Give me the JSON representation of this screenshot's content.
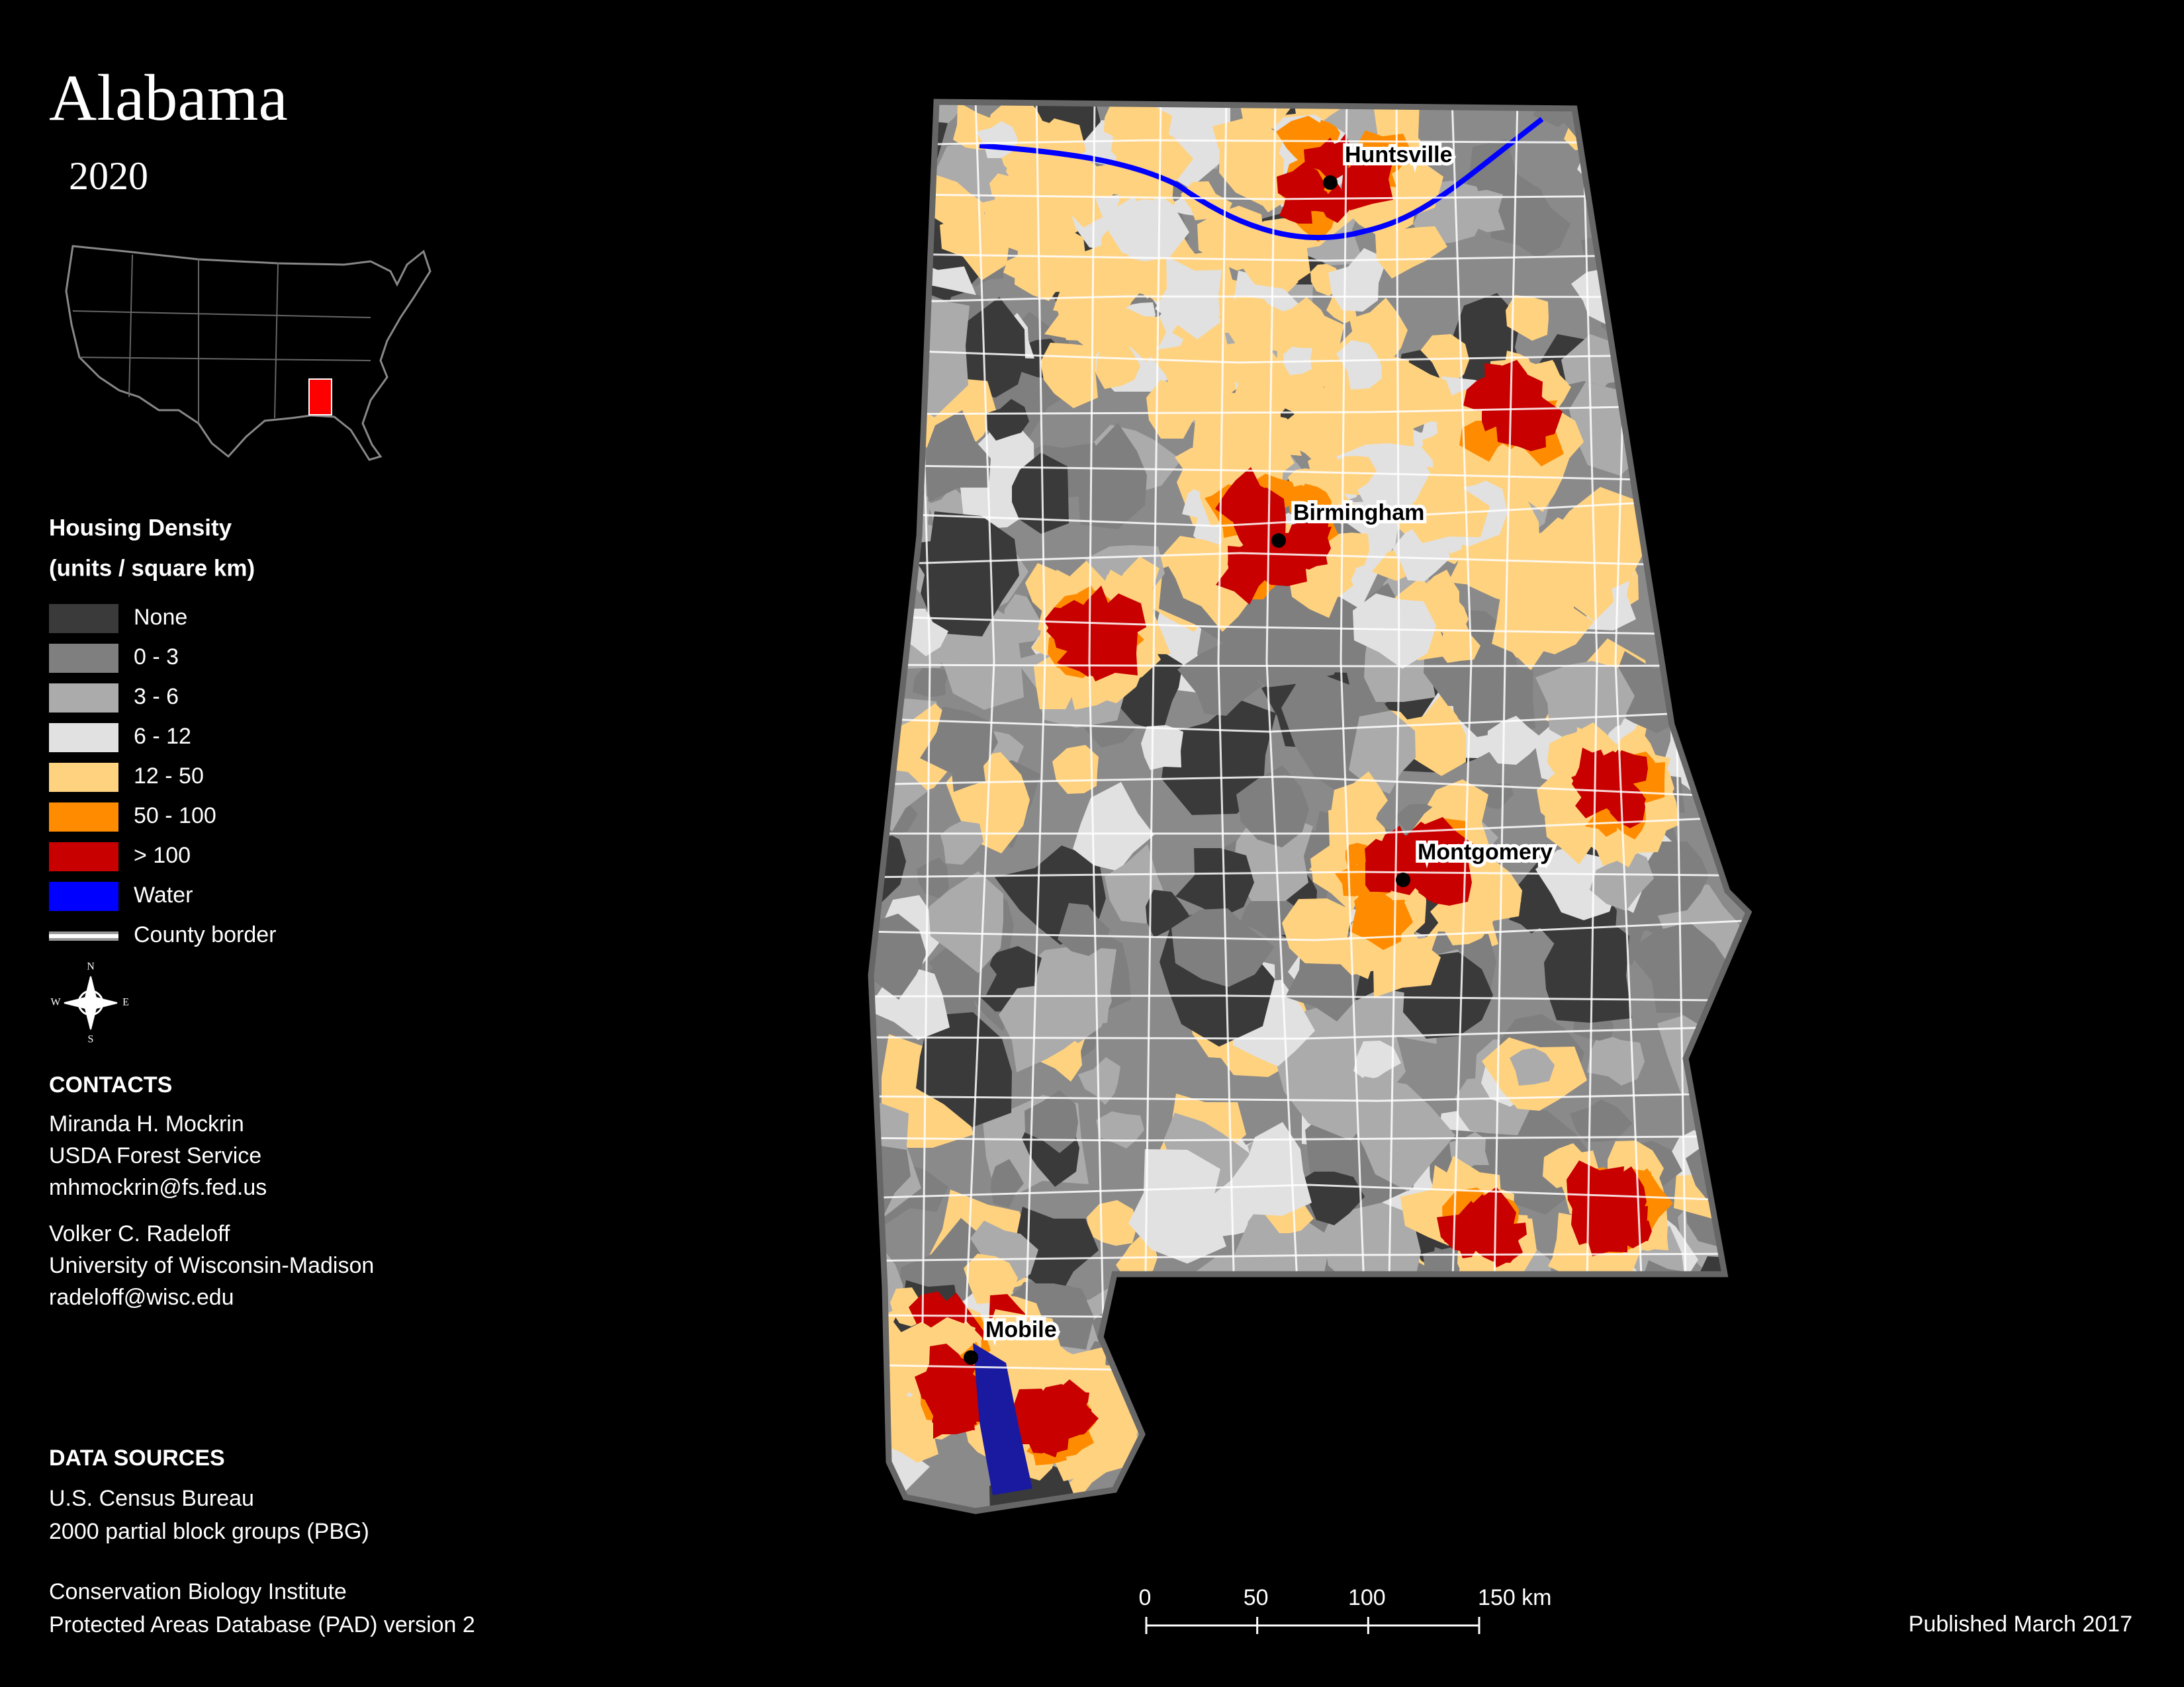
{
  "header": {
    "title": "Alabama",
    "year": "2020"
  },
  "legend": {
    "title": "Housing Density",
    "subtitle": "(units / square km)",
    "items": [
      {
        "label": "None",
        "color": "#3a3a3a"
      },
      {
        "label": "0 - 3",
        "color": "#7f7f7f"
      },
      {
        "label": "3 - 6",
        "color": "#ababab"
      },
      {
        "label": "6 - 12",
        "color": "#e1e1e1"
      },
      {
        "label": "12 - 50",
        "color": "#ffd27f"
      },
      {
        "label": "50 - 100",
        "color": "#ff8c00"
      },
      {
        "label": "> 100",
        "color": "#c80000"
      },
      {
        "label": "Water",
        "color": "#0000ff"
      },
      {
        "label": "County border",
        "color": "#ffffff"
      }
    ]
  },
  "compass": {
    "north": "N",
    "east": "E",
    "south": "S",
    "west": "W"
  },
  "cities": [
    {
      "name": "Huntsville"
    },
    {
      "name": "Birmingham"
    },
    {
      "name": "Montgomery"
    },
    {
      "name": "Mobile"
    }
  ],
  "contacts": {
    "heading": "CONTACTS",
    "people": [
      [
        "Miranda H. Mockrin",
        "USDA Forest Service",
        "mhmockrin@fs.fed.us"
      ],
      [
        "Volker C. Radeloff",
        "University of Wisconsin-Madison",
        "radeloff@wisc.edu"
      ]
    ]
  },
  "data_sources": {
    "heading": "DATA SOURCES",
    "lines": [
      [
        "U.S. Census Bureau",
        "2000 partial block groups (PBG)"
      ],
      [
        "Conservation Biology Institute",
        "Protected Areas Database (PAD) version 2"
      ]
    ]
  },
  "scale_bar": {
    "ticks": [
      0,
      50,
      100,
      {
        "value": 150,
        "label": "150 km"
      }
    ]
  },
  "footer": {
    "published": "Published March 2017"
  }
}
